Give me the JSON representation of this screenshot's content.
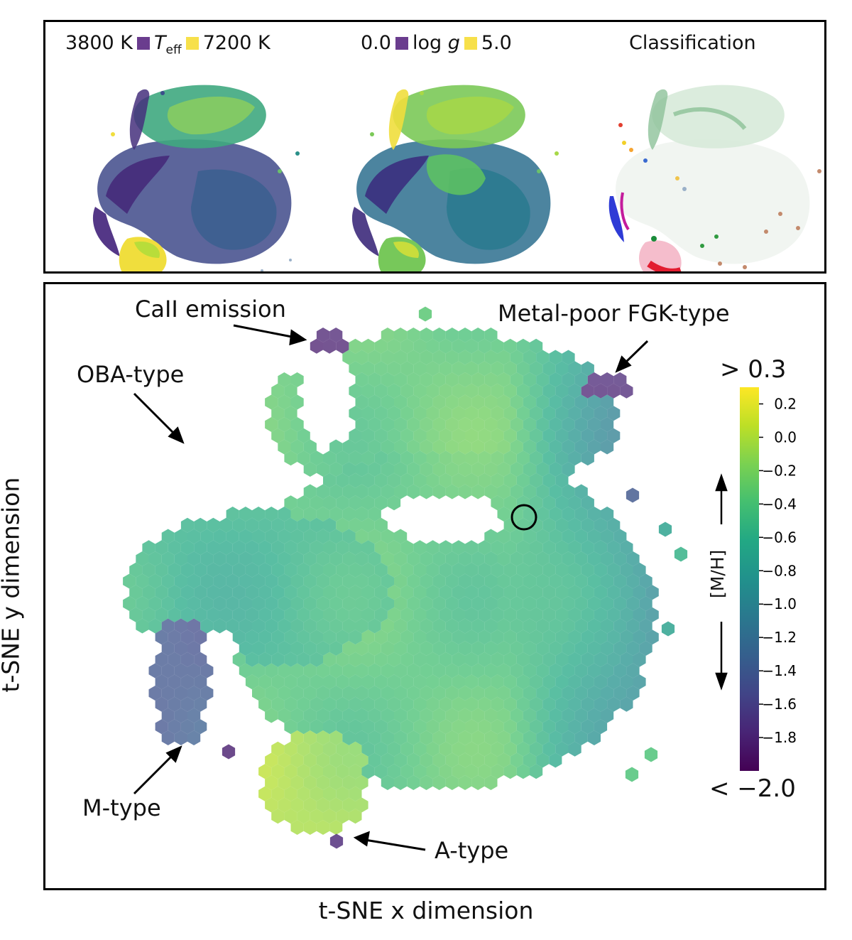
{
  "top_panel": {
    "teff": {
      "min_label": "3800 K",
      "name": "T",
      "sub": "eff",
      "max_label": "7200 K"
    },
    "logg": {
      "min_label": "0.0",
      "name_pre": "log ",
      "name_var": "g",
      "max_label": "5.0"
    },
    "classification": {
      "label": "Classification"
    },
    "swatch_colors": {
      "low": "#6a3d8e",
      "high": "#f7e04a"
    }
  },
  "annotations": {
    "caii": "CaII emission",
    "metal_poor": "Metal-poor FGK-type",
    "oba": "OBA-type",
    "m_type": "M-type",
    "a_type": "A-type"
  },
  "axes": {
    "xlabel": "t-SNE x dimension",
    "ylabel": "t-SNE y dimension"
  },
  "colorbar": {
    "label": "[M/H]",
    "top_label": "> 0.3",
    "bottom_label": "< −2.0",
    "ticks": [
      "0.2",
      "0.0",
      "−0.2",
      "−0.4",
      "−0.6",
      "−0.8",
      "−1.0",
      "−1.2",
      "−1.4",
      "−1.6",
      "−1.8"
    ],
    "colormap": "viridis"
  },
  "chart_data": {
    "type": "hexbin",
    "title": "",
    "xlabel": "t-SNE x dimension",
    "ylabel": "t-SNE y dimension",
    "color_variable": "[M/H]",
    "color_range": [
      -2.0,
      0.3
    ],
    "colorbar_ticks": [
      0.2,
      0.0,
      -0.2,
      -0.4,
      -0.6,
      -0.8,
      -1.0,
      -1.2,
      -1.4,
      -1.6,
      -1.8
    ],
    "annotations": [
      "CaII emission",
      "Metal-poor FGK-type",
      "OBA-type",
      "M-type",
      "A-type"
    ],
    "insets": [
      {
        "variable": "Teff",
        "range": [
          3800,
          7200
        ],
        "units": "K"
      },
      {
        "variable": "log g",
        "range": [
          0.0,
          5.0
        ]
      },
      {
        "variable": "Classification"
      }
    ]
  }
}
